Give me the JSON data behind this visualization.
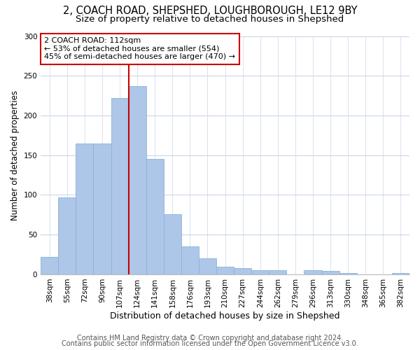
{
  "title1": "2, COACH ROAD, SHEPSHED, LOUGHBOROUGH, LE12 9BY",
  "title2": "Size of property relative to detached houses in Shepshed",
  "xlabel": "Distribution of detached houses by size in Shepshed",
  "ylabel": "Number of detached properties",
  "categories": [
    "38sqm",
    "55sqm",
    "72sqm",
    "90sqm",
    "107sqm",
    "124sqm",
    "141sqm",
    "158sqm",
    "176sqm",
    "193sqm",
    "210sqm",
    "227sqm",
    "244sqm",
    "262sqm",
    "279sqm",
    "296sqm",
    "313sqm",
    "330sqm",
    "348sqm",
    "365sqm",
    "382sqm"
  ],
  "values": [
    22,
    97,
    165,
    165,
    222,
    237,
    145,
    76,
    35,
    20,
    10,
    8,
    5,
    5,
    0,
    5,
    4,
    2,
    0,
    0,
    2
  ],
  "bar_color": "#aec6e8",
  "bar_edgecolor": "#8ab4d8",
  "vline_position": 4.5,
  "vline_color": "#cc0000",
  "annotation_text": "2 COACH ROAD: 112sqm\n← 53% of detached houses are smaller (554)\n45% of semi-detached houses are larger (470) →",
  "annotation_box_edgecolor": "#cc0000",
  "ylim": [
    0,
    300
  ],
  "yticks": [
    0,
    50,
    100,
    150,
    200,
    250,
    300
  ],
  "grid_color": "#ccd6e8",
  "footer1": "Contains HM Land Registry data © Crown copyright and database right 2024.",
  "footer2": "Contains public sector information licensed under the Open Government Licence v3.0.",
  "title1_fontsize": 10.5,
  "title2_fontsize": 9.5,
  "tick_fontsize": 7.5,
  "ylabel_fontsize": 8.5,
  "xlabel_fontsize": 9,
  "footer_fontsize": 7,
  "annot_fontsize": 8
}
